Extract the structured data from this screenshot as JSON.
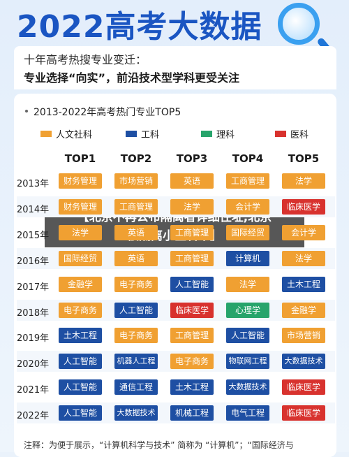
{
  "header": {
    "title": "2022高考大数据",
    "subtitle1": "十年高考热搜专业变迁：",
    "subtitle2": "专业选择“向实”，前沿技术型学科更受关注"
  },
  "colors": {
    "人文社科": "#f0a032",
    "工科": "#1e4fa3",
    "理科": "#27a46b",
    "医科": "#d8322e"
  },
  "chart_data": {
    "type": "table",
    "title": "2013-2022年高考热门专业TOP5",
    "legend": [
      "人文社科",
      "工科",
      "理科",
      "医科"
    ],
    "columns": [
      "TOP1",
      "TOP2",
      "TOP3",
      "TOP4",
      "TOP5"
    ],
    "rows": [
      {
        "year": "2013年",
        "items": [
          {
            "name": "财务管理",
            "cat": "人文社科"
          },
          {
            "name": "市场营销",
            "cat": "人文社科"
          },
          {
            "name": "英语",
            "cat": "人文社科"
          },
          {
            "name": "工商管理",
            "cat": "人文社科"
          },
          {
            "name": "法学",
            "cat": "人文社科"
          }
        ]
      },
      {
        "year": "2014年",
        "items": [
          {
            "name": "财务管理",
            "cat": "人文社科"
          },
          {
            "name": "工商管理",
            "cat": "人文社科"
          },
          {
            "name": "法学",
            "cat": "人文社科"
          },
          {
            "name": "会计学",
            "cat": "人文社科"
          },
          {
            "name": "临床医学",
            "cat": "医科"
          }
        ]
      },
      {
        "year": "2015年",
        "items": [
          {
            "name": "法学",
            "cat": "人文社科"
          },
          {
            "name": "英语",
            "cat": "人文社科"
          },
          {
            "name": "工商管理",
            "cat": "人文社科"
          },
          {
            "name": "国际经贸",
            "cat": "人文社科"
          },
          {
            "name": "会计学",
            "cat": "人文社科"
          }
        ]
      },
      {
        "year": "2016年",
        "items": [
          {
            "name": "国际经贸",
            "cat": "人文社科"
          },
          {
            "name": "英语",
            "cat": "人文社科"
          },
          {
            "name": "工商管理",
            "cat": "人文社科"
          },
          {
            "name": "计算机",
            "cat": "工科"
          },
          {
            "name": "法学",
            "cat": "人文社科"
          }
        ]
      },
      {
        "year": "2017年",
        "items": [
          {
            "name": "金融学",
            "cat": "人文社科"
          },
          {
            "name": "电子商务",
            "cat": "人文社科"
          },
          {
            "name": "人工智能",
            "cat": "工科"
          },
          {
            "name": "法学",
            "cat": "人文社科"
          },
          {
            "name": "土木工程",
            "cat": "工科"
          }
        ]
      },
      {
        "year": "2018年",
        "items": [
          {
            "name": "电子商务",
            "cat": "人文社科"
          },
          {
            "name": "人工智能",
            "cat": "工科"
          },
          {
            "name": "临床医学",
            "cat": "医科"
          },
          {
            "name": "心理学",
            "cat": "理科"
          },
          {
            "name": "金融学",
            "cat": "人文社科"
          }
        ]
      },
      {
        "year": "2019年",
        "items": [
          {
            "name": "土木工程",
            "cat": "工科"
          },
          {
            "name": "电子商务",
            "cat": "人文社科"
          },
          {
            "name": "工商管理",
            "cat": "人文社科"
          },
          {
            "name": "人工智能",
            "cat": "工科"
          },
          {
            "name": "市场营销",
            "cat": "人文社科"
          }
        ]
      },
      {
        "year": "2020年",
        "items": [
          {
            "name": "人工智能",
            "cat": "工科"
          },
          {
            "name": "机器人工程",
            "cat": "工科"
          },
          {
            "name": "电子商务",
            "cat": "人文社科"
          },
          {
            "name": "物联网工程",
            "cat": "工科"
          },
          {
            "name": "大数据技术",
            "cat": "工科"
          }
        ]
      },
      {
        "year": "2021年",
        "items": [
          {
            "name": "人工智能",
            "cat": "工科"
          },
          {
            "name": "通信工程",
            "cat": "工科"
          },
          {
            "name": "土木工程",
            "cat": "工科"
          },
          {
            "name": "大数据技术",
            "cat": "工科"
          },
          {
            "name": "临床医学",
            "cat": "医科"
          }
        ]
      },
      {
        "year": "2022年",
        "items": [
          {
            "name": "人工智能",
            "cat": "工科"
          },
          {
            "name": "大数据技术",
            "cat": "工科"
          },
          {
            "name": "机械工程",
            "cat": "工科"
          },
          {
            "name": "电气工程",
            "cat": "工科"
          },
          {
            "name": "临床医学",
            "cat": "医科"
          }
        ]
      }
    ]
  },
  "overlay": {
    "line1": "【北京不再公布隔离者详细住址,北京",
    "line2": "被隔离小区名单】"
  },
  "note": "注释：为便于展示，“计算机科学与技术” 简称为 “计算机”；“国际经济与"
}
